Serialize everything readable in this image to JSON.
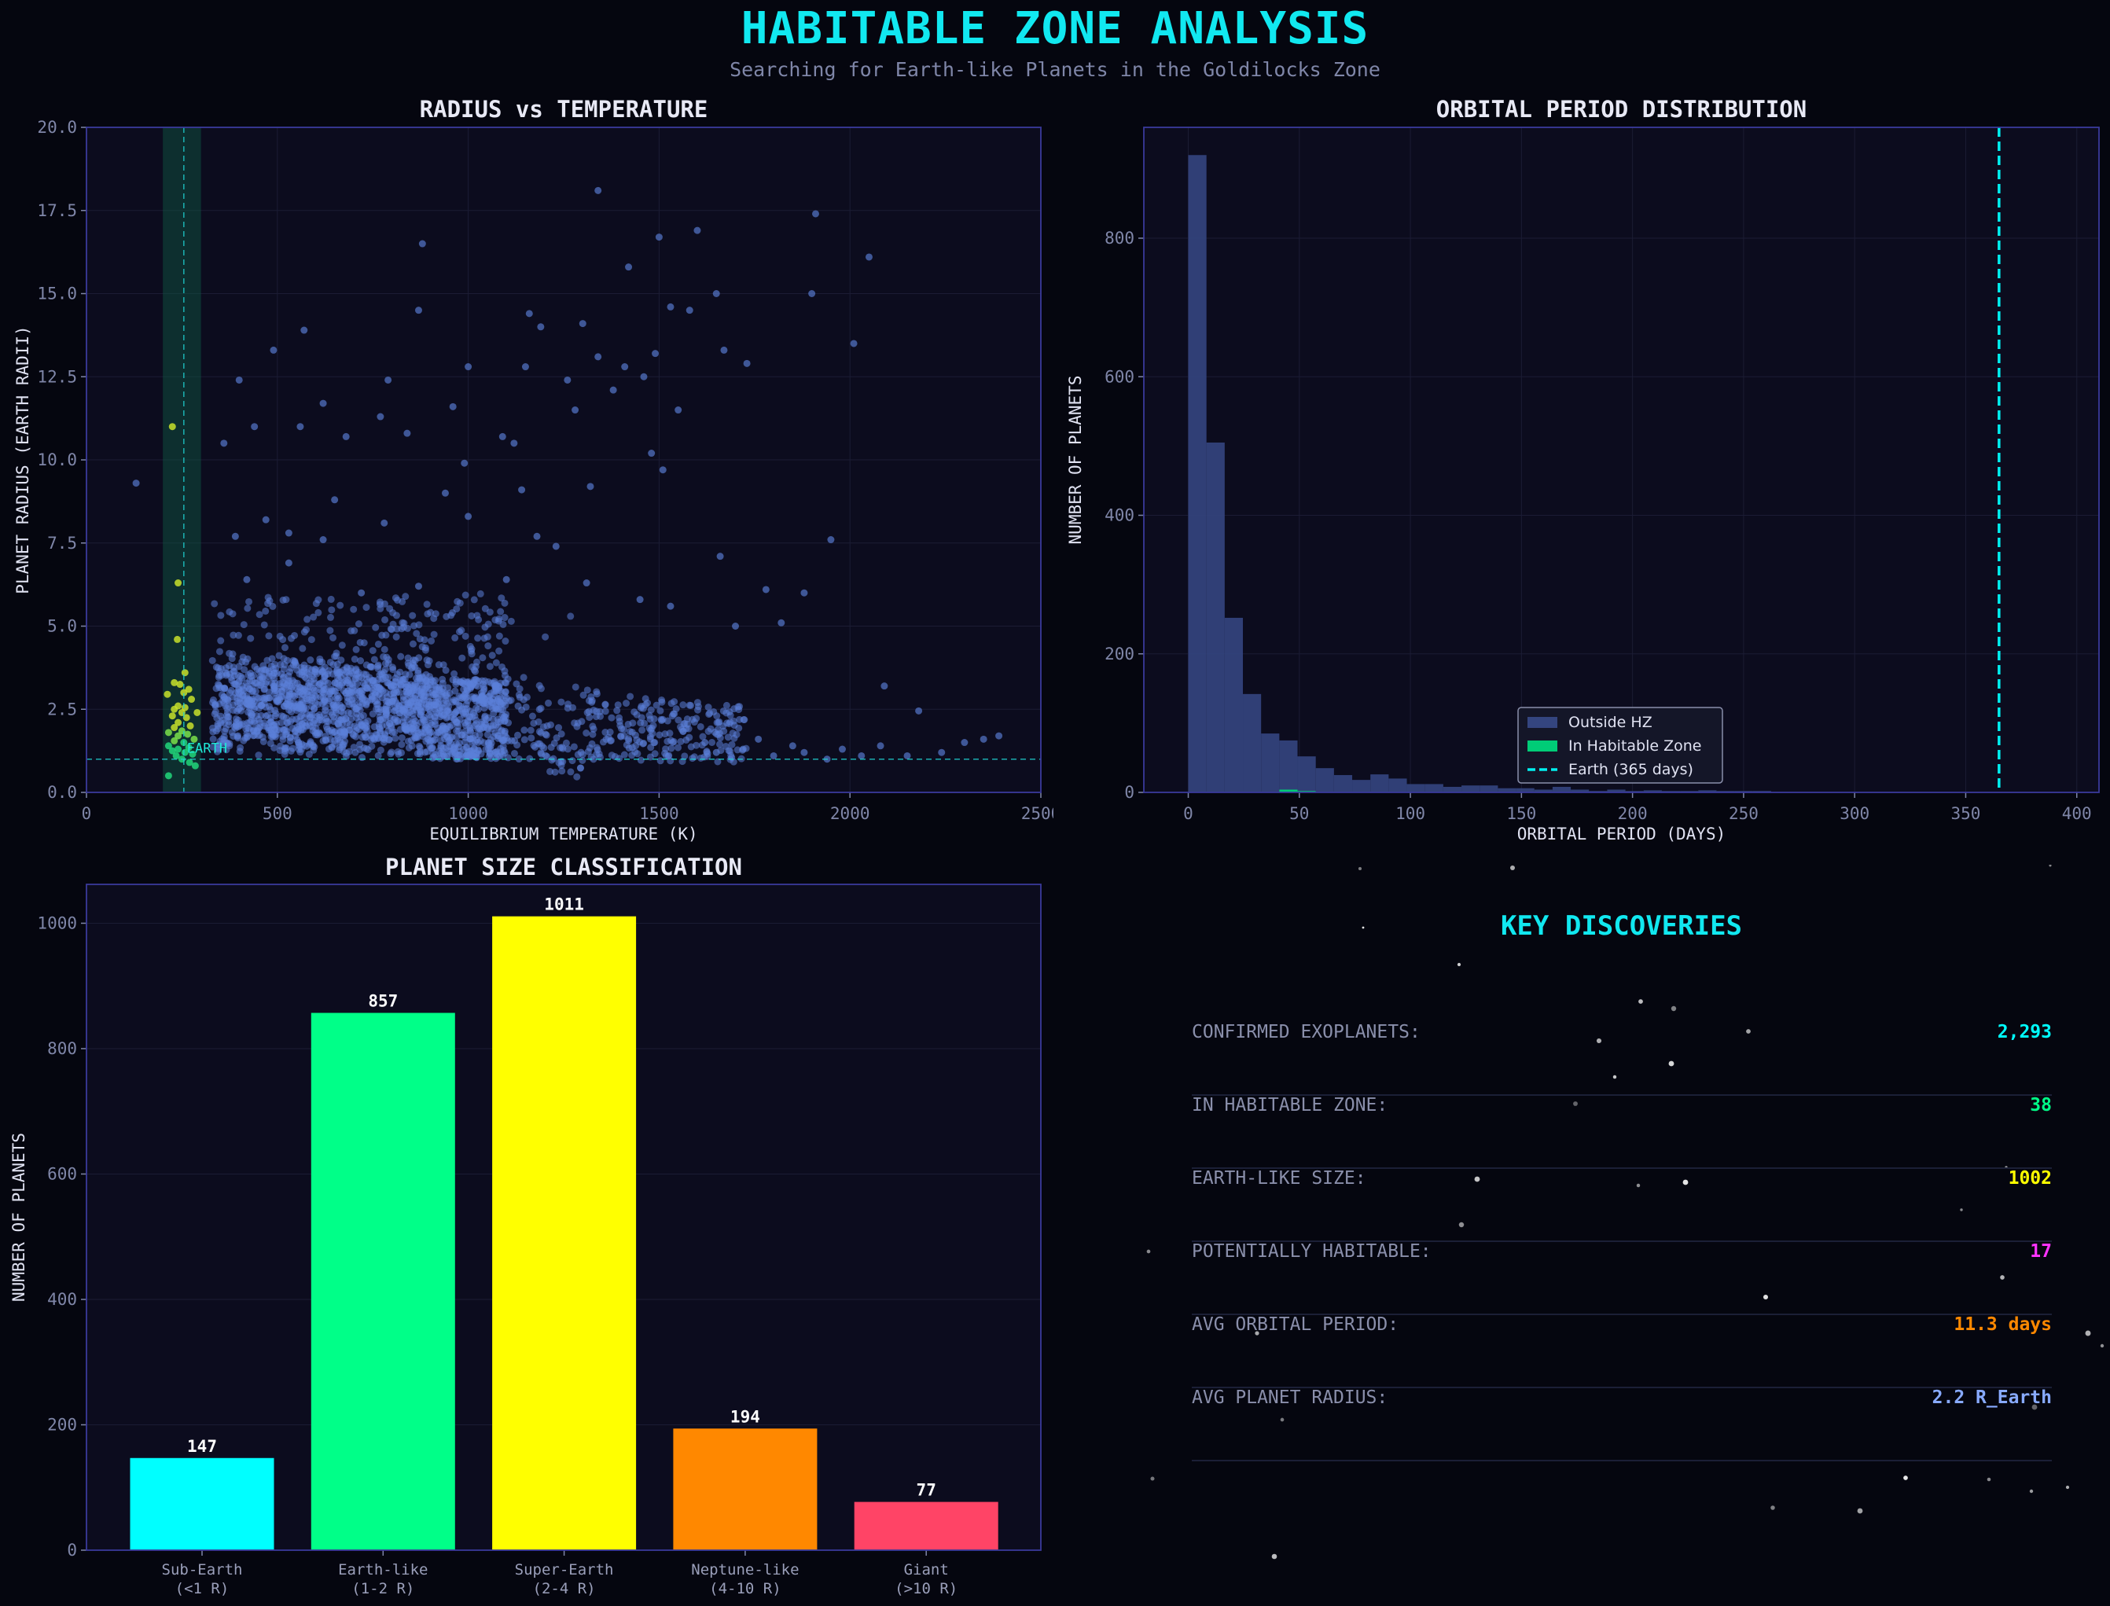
{
  "title": "HABITABLE ZONE ANALYSIS",
  "subtitle": "Searching for Earth-like Planets in the Goldilocks Zone",
  "colors": {
    "background": "#05060f",
    "panel": "#0c0c1e",
    "axis": "#3a3a9a",
    "outside_hz": "#5b7fd8",
    "hz_band": "#0f5a44",
    "earth_line": "#1fd4d4",
    "cyan": "#00ffff",
    "green": "#00ff88",
    "yellow": "#ffff00",
    "magenta": "#ff33ff",
    "orange": "#ff8800",
    "pink": "#ff4466",
    "lightblue": "#88aaff"
  },
  "chart_data": [
    {
      "type": "scatter",
      "title": "RADIUS vs TEMPERATURE",
      "xlabel": "EQUILIBRIUM TEMPERATURE (K)",
      "ylabel": "PLANET RADIUS (EARTH RADII)",
      "xlim": [
        0,
        2500
      ],
      "ylim": [
        0,
        20
      ],
      "xticks": [
        "0",
        "500",
        "1000",
        "1500",
        "2000",
        "2500"
      ],
      "yticks": [
        "0.0",
        "2.5",
        "5.0",
        "7.5",
        "10.0",
        "12.5",
        "15.0",
        "17.5",
        "20.0"
      ],
      "habitable_zone_band": [
        200,
        300
      ],
      "earth_reference": {
        "temperature": 255,
        "radius": 1.0,
        "label": "EARTH"
      },
      "habitable_zone_points": [
        [
          225,
          11.0
        ],
        [
          240,
          6.3
        ],
        [
          238,
          4.6
        ],
        [
          258,
          3.6
        ],
        [
          230,
          3.3
        ],
        [
          245,
          3.25
        ],
        [
          268,
          3.1
        ],
        [
          255,
          3.0
        ],
        [
          212,
          2.95
        ],
        [
          275,
          2.8
        ],
        [
          240,
          2.6
        ],
        [
          258,
          2.55
        ],
        [
          230,
          2.5
        ],
        [
          250,
          2.4
        ],
        [
          290,
          2.4
        ],
        [
          225,
          2.3
        ],
        [
          262,
          2.25
        ],
        [
          240,
          2.1
        ],
        [
          272,
          2.0
        ],
        [
          230,
          1.95
        ],
        [
          250,
          1.85
        ],
        [
          215,
          1.8
        ],
        [
          265,
          1.75
        ],
        [
          240,
          1.7
        ],
        [
          282,
          1.6
        ],
        [
          230,
          1.55
        ],
        [
          255,
          1.5
        ],
        [
          215,
          1.4
        ],
        [
          268,
          1.35
        ],
        [
          240,
          1.3
        ],
        [
          225,
          1.25
        ],
        [
          258,
          1.2
        ],
        [
          278,
          1.15
        ],
        [
          235,
          1.1
        ],
        [
          250,
          1.0
        ],
        [
          270,
          0.9
        ],
        [
          285,
          0.8
        ],
        [
          215,
          0.5
        ]
      ],
      "outlier_points": [
        [
          130,
          9.3
        ],
        [
          1340,
          18.1
        ],
        [
          1910,
          17.4
        ],
        [
          2050,
          16.1
        ],
        [
          880,
          16.5
        ],
        [
          1500,
          16.7
        ],
        [
          1600,
          16.9
        ],
        [
          1420,
          15.8
        ],
        [
          1650,
          15.0
        ],
        [
          1900,
          15.0
        ],
        [
          870,
          14.5
        ],
        [
          1530,
          14.6
        ],
        [
          1580,
          14.5
        ],
        [
          1160,
          14.4
        ],
        [
          1300,
          14.1
        ],
        [
          1190,
          14.0
        ],
        [
          1340,
          13.1
        ],
        [
          1490,
          13.2
        ],
        [
          2010,
          13.5
        ],
        [
          570,
          13.9
        ],
        [
          490,
          13.3
        ],
        [
          1000,
          12.8
        ],
        [
          1150,
          12.8
        ],
        [
          1410,
          12.8
        ],
        [
          1460,
          12.5
        ],
        [
          1260,
          12.4
        ],
        [
          790,
          12.4
        ],
        [
          400,
          12.4
        ],
        [
          1380,
          12.1
        ],
        [
          1670,
          13.3
        ],
        [
          1730,
          12.9
        ],
        [
          1550,
          11.5
        ],
        [
          1280,
          11.5
        ],
        [
          960,
          11.6
        ],
        [
          620,
          11.7
        ],
        [
          770,
          11.3
        ],
        [
          440,
          11.0
        ],
        [
          560,
          11.0
        ],
        [
          680,
          10.7
        ],
        [
          840,
          10.8
        ],
        [
          1090,
          10.7
        ],
        [
          1480,
          10.2
        ],
        [
          1510,
          9.7
        ],
        [
          1120,
          10.5
        ],
        [
          360,
          10.5
        ],
        [
          990,
          9.9
        ],
        [
          940,
          9.0
        ],
        [
          1140,
          9.1
        ],
        [
          1320,
          9.2
        ],
        [
          650,
          8.8
        ],
        [
          780,
          8.1
        ],
        [
          470,
          8.2
        ],
        [
          1000,
          8.3
        ],
        [
          390,
          7.7
        ],
        [
          530,
          7.8
        ],
        [
          620,
          7.6
        ],
        [
          1180,
          7.7
        ],
        [
          1230,
          7.4
        ],
        [
          1660,
          7.1
        ],
        [
          1950,
          7.6
        ],
        [
          1780,
          6.1
        ],
        [
          1880,
          6.0
        ],
        [
          1530,
          5.6
        ],
        [
          1700,
          5.0
        ],
        [
          1820,
          5.1
        ],
        [
          1450,
          5.8
        ],
        [
          1310,
          6.3
        ],
        [
          1100,
          6.4
        ],
        [
          870,
          6.2
        ],
        [
          720,
          6.0
        ],
        [
          420,
          6.4
        ],
        [
          530,
          6.9
        ],
        [
          2180,
          2.45
        ],
        [
          2090,
          3.2
        ],
        [
          2390,
          1.7
        ],
        [
          2350,
          1.6
        ],
        [
          2300,
          1.5
        ],
        [
          2240,
          1.2
        ],
        [
          2150,
          1.1
        ],
        [
          2080,
          1.4
        ],
        [
          2030,
          1.1
        ],
        [
          1980,
          1.3
        ],
        [
          1940,
          1.0
        ],
        [
          1880,
          1.2
        ],
        [
          1850,
          1.4
        ],
        [
          1800,
          1.1
        ],
        [
          1760,
          1.6
        ],
        [
          1720,
          1.3
        ],
        [
          1690,
          1.05
        ],
        [
          1650,
          1.2
        ],
        [
          1620,
          1.5
        ]
      ]
    },
    {
      "type": "bar",
      "title": "ORBITAL PERIOD DISTRIBUTION",
      "xlabel": "ORBITAL PERIOD (DAYS)",
      "ylabel": "NUMBER OF PLANETS",
      "xlim": [
        -20,
        410
      ],
      "ylim": [
        0,
        960
      ],
      "xticks": [
        "0",
        "50",
        "100",
        "150",
        "200",
        "250",
        "300",
        "350",
        "400"
      ],
      "yticks": [
        "0",
        "200",
        "400",
        "600",
        "800"
      ],
      "bin_width": 8.2,
      "bin_start": 0,
      "outside_hz_counts": [
        920,
        505,
        252,
        142,
        85,
        75,
        52,
        35,
        25,
        18,
        26,
        20,
        12,
        12,
        8,
        10,
        10,
        6,
        6,
        4,
        8,
        4,
        2,
        4,
        2,
        3,
        2,
        2,
        3,
        2,
        2,
        2
      ],
      "in_hz_counts": [
        0,
        0,
        0,
        0,
        0,
        4,
        2,
        0,
        0,
        0,
        0,
        0,
        0,
        0,
        0,
        0,
        0,
        0,
        0,
        0,
        0,
        0,
        0,
        0,
        0,
        0,
        0,
        0,
        0,
        0,
        0,
        0
      ],
      "earth_reference_days": 365,
      "legend": [
        "Outside HZ",
        "In Habitable Zone",
        "Earth (365 days)"
      ],
      "legend_position": "lower-center"
    },
    {
      "type": "bar",
      "title": "PLANET SIZE CLASSIFICATION",
      "ylabel": "NUMBER OF PLANETS",
      "ylim": [
        0,
        1062
      ],
      "yticks": [
        "0",
        "200",
        "400",
        "600",
        "800",
        "1000"
      ],
      "categories": [
        "Sub-Earth",
        "Earth-like",
        "Super-Earth",
        "Neptune-like",
        "Giant"
      ],
      "category_ranges": [
        "(<1 R)",
        "(1-2 R)",
        "(2-4 R)",
        "(4-10 R)",
        "(>10 R)"
      ],
      "values": [
        147,
        857,
        1011,
        194,
        77
      ],
      "value_labels": [
        "147",
        "857",
        "1011",
        "194",
        "77"
      ],
      "bar_colors": [
        "#00ffff",
        "#00ff88",
        "#ffff00",
        "#ff8800",
        "#ff4466"
      ]
    }
  ],
  "key_discoveries": {
    "title": "KEY DISCOVERIES",
    "rows": [
      {
        "label": "CONFIRMED EXOPLANETS:",
        "value": "2,293",
        "color": "#00ffff"
      },
      {
        "label": "IN HABITABLE ZONE:",
        "value": "38",
        "color": "#00ff88"
      },
      {
        "label": "EARTH-LIKE SIZE:",
        "value": "1002",
        "color": "#ffff00"
      },
      {
        "label": "POTENTIALLY HABITABLE:",
        "value": "17",
        "color": "#ff33ff"
      },
      {
        "label": "AVG ORBITAL PERIOD:",
        "value": "11.3 days",
        "color": "#ff8800"
      },
      {
        "label": "AVG PLANET RADIUS:",
        "value": "2.2 R_Earth",
        "color": "#88aaff"
      }
    ]
  }
}
